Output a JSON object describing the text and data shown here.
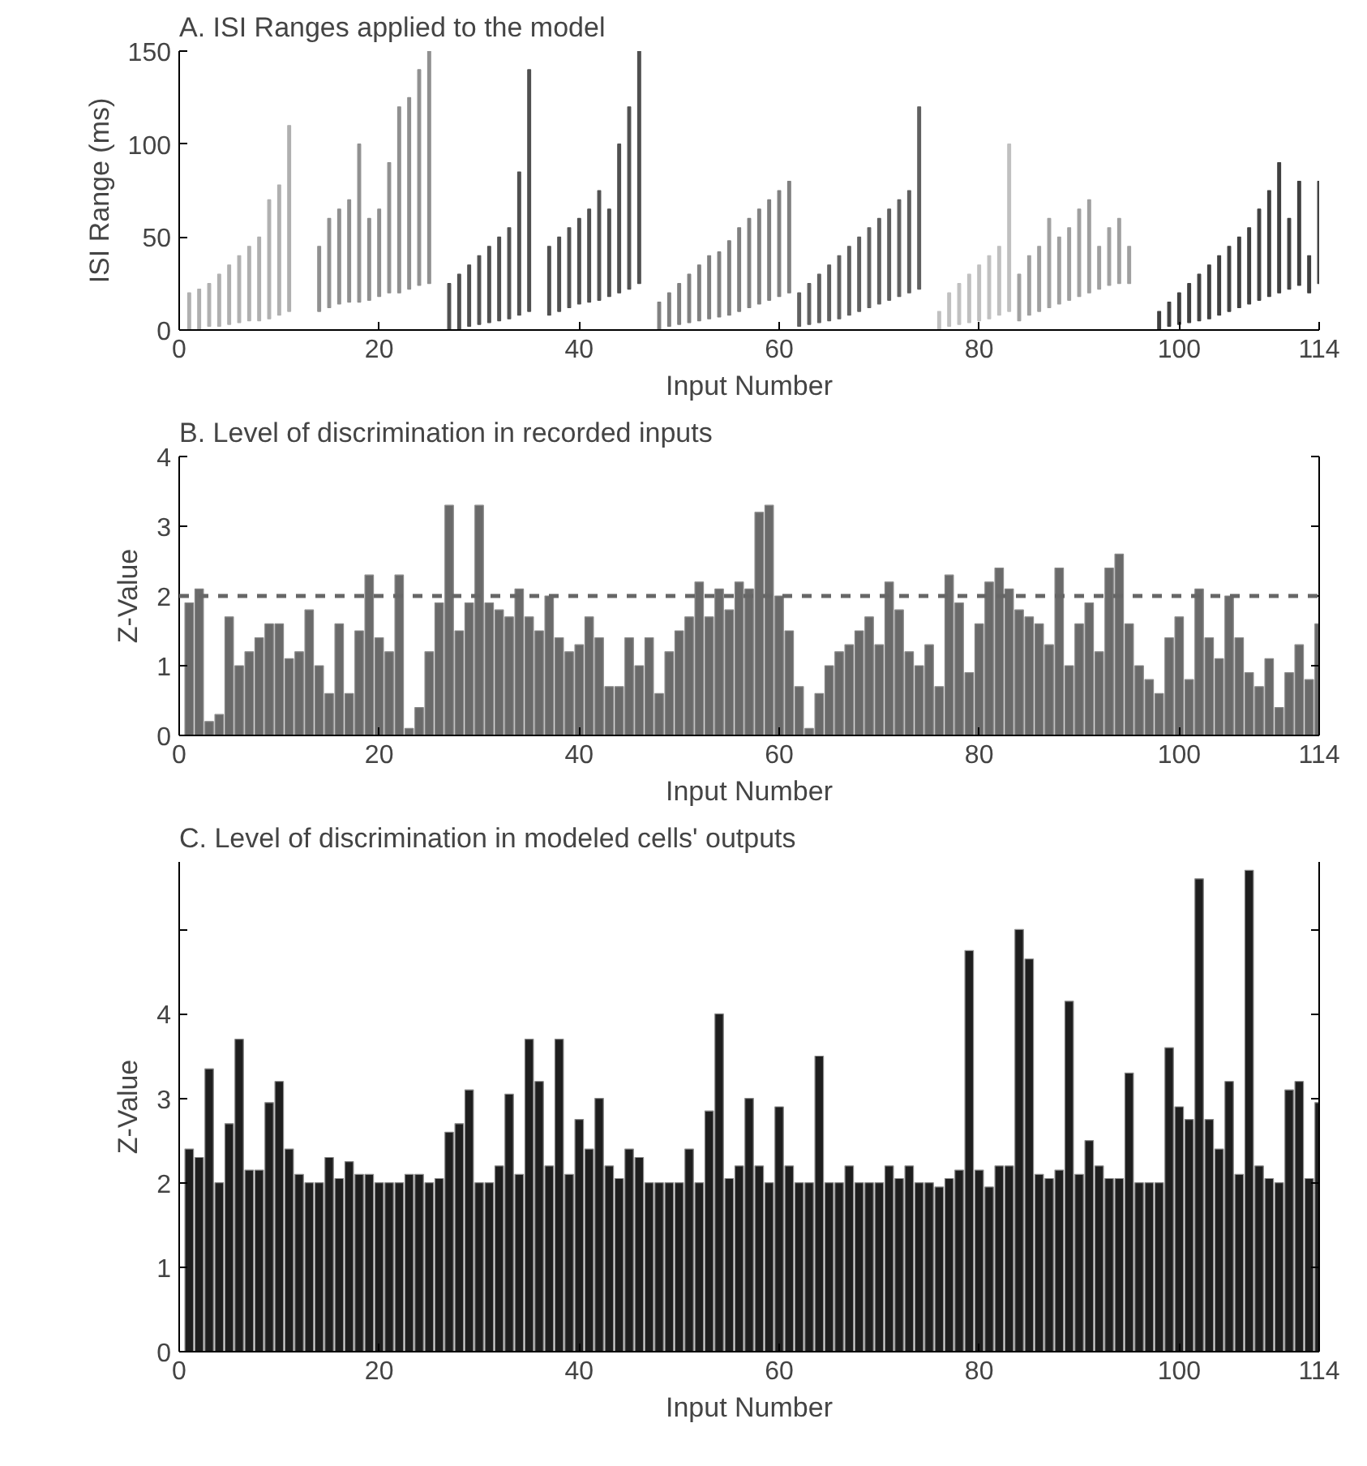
{
  "chart_data": [
    {
      "type": "bar",
      "title": "A. ISI Ranges applied to the model",
      "xlabel": "Input Number",
      "ylabel": "ISI Range (ms)",
      "xlim": [
        0,
        114
      ],
      "xticks": [
        0,
        20,
        40,
        60,
        80,
        100,
        114
      ],
      "ylim": [
        0,
        150
      ],
      "yticks": [
        0,
        50,
        100,
        150
      ],
      "grid": false,
      "series": [
        {
          "color": "#b0b0b0",
          "x": [
            1,
            2,
            3,
            4,
            5,
            6,
            7,
            8,
            9,
            10,
            11
          ],
          "base": [
            0,
            0,
            2,
            2,
            3,
            4,
            5,
            5,
            6,
            8,
            10
          ],
          "values": [
            20,
            22,
            23,
            28,
            32,
            36,
            40,
            45,
            64,
            70,
            100
          ]
        },
        {
          "color": "#909090",
          "x": [
            14,
            15,
            16,
            17,
            18,
            19,
            20,
            21,
            22,
            23,
            24,
            25
          ],
          "base": [
            10,
            12,
            14,
            15,
            15,
            16,
            18,
            20,
            20,
            22,
            24,
            25
          ],
          "values": [
            35,
            48,
            51,
            55,
            85,
            44,
            47,
            70,
            100,
            103,
            116,
            125
          ]
        },
        {
          "color": "#505050",
          "x": [
            27,
            28,
            29,
            30,
            31,
            32,
            33,
            34,
            35
          ],
          "base": [
            0,
            0,
            2,
            3,
            4,
            5,
            6,
            8,
            10
          ],
          "values": [
            25,
            30,
            33,
            37,
            41,
            45,
            49,
            77,
            130
          ]
        },
        {
          "color": "#505050",
          "x": [
            37,
            38,
            39,
            40,
            41,
            42,
            43,
            44,
            45,
            46
          ],
          "base": [
            8,
            10,
            12,
            14,
            15,
            16,
            18,
            20,
            22,
            25
          ],
          "values": [
            37,
            40,
            43,
            46,
            50,
            59,
            47,
            80,
            98,
            125
          ]
        },
        {
          "color": "#808080",
          "x": [
            48,
            49,
            50,
            51,
            52,
            53,
            54,
            55,
            56,
            57,
            58,
            59,
            60,
            61
          ],
          "base": [
            0,
            2,
            3,
            4,
            5,
            6,
            7,
            8,
            10,
            12,
            14,
            16,
            18,
            20
          ],
          "values": [
            15,
            18,
            22,
            26,
            30,
            34,
            35,
            40,
            45,
            48,
            51,
            54,
            57,
            60
          ]
        },
        {
          "color": "#606060",
          "x": [
            62,
            63,
            64,
            65,
            66,
            67,
            68,
            69,
            70,
            71,
            72,
            73,
            74
          ],
          "base": [
            2,
            3,
            4,
            5,
            6,
            8,
            10,
            12,
            14,
            16,
            18,
            20,
            22
          ],
          "values": [
            18,
            22,
            26,
            30,
            34,
            37,
            40,
            43,
            46,
            49,
            52,
            55,
            98
          ]
        },
        {
          "color": "#c0c0c0",
          "x": [
            76,
            77,
            78,
            79,
            80,
            81,
            82,
            83
          ],
          "base": [
            0,
            2,
            3,
            4,
            5,
            6,
            8,
            10
          ],
          "values": [
            10,
            18,
            22,
            26,
            30,
            34,
            37,
            90
          ]
        },
        {
          "color": "#a0a0a0",
          "x": [
            84,
            85,
            86,
            87,
            88,
            89,
            90,
            91,
            92,
            93,
            94,
            95
          ],
          "base": [
            5,
            8,
            10,
            12,
            14,
            16,
            18,
            20,
            22,
            24,
            25,
            25
          ],
          "values": [
            25,
            32,
            35,
            48,
            36,
            39,
            47,
            50,
            23,
            31,
            35,
            20
          ]
        },
        {
          "color": "#404040",
          "x": [
            98,
            99,
            100,
            101,
            102,
            103,
            104,
            105,
            106,
            107,
            108,
            109,
            110,
            111,
            112,
            113,
            114
          ],
          "base": [
            0,
            2,
            3,
            4,
            5,
            6,
            8,
            10,
            12,
            14,
            16,
            18,
            20,
            22,
            24,
            20,
            25
          ],
          "values": [
            10,
            13,
            17,
            21,
            25,
            29,
            32,
            35,
            38,
            41,
            49,
            57,
            70,
            38,
            56,
            20,
            55
          ]
        }
      ]
    },
    {
      "type": "bar",
      "title": "B. Level of discrimination in recorded inputs",
      "xlabel": "Input Number",
      "ylabel": "Z-Value",
      "xlim": [
        0,
        114
      ],
      "xticks": [
        0,
        20,
        40,
        60,
        80,
        100,
        114
      ],
      "ylim": [
        0,
        4
      ],
      "yticks": [
        0,
        1,
        2,
        3,
        4
      ],
      "grid": false,
      "ref_lines": [
        {
          "axis": "y",
          "value": 2,
          "color": "#666666",
          "line_style": "dashed"
        }
      ],
      "series": [
        {
          "color": "#6a6a6a",
          "x": [
            1,
            2,
            3,
            4,
            5,
            6,
            7,
            8,
            9,
            10,
            11,
            12,
            13,
            14,
            15,
            16,
            17,
            18,
            19,
            20,
            21,
            22,
            23,
            24,
            25,
            26,
            27,
            28,
            29,
            30,
            31,
            32,
            33,
            34,
            35,
            36,
            37,
            38,
            39,
            40,
            41,
            42,
            43,
            44,
            45,
            46,
            47,
            48,
            49,
            50,
            51,
            52,
            53,
            54,
            55,
            56,
            57,
            58,
            59,
            60,
            61,
            62,
            63,
            64,
            65,
            66,
            67,
            68,
            69,
            70,
            71,
            72,
            73,
            74,
            75,
            76,
            77,
            78,
            79,
            80,
            81,
            82,
            83,
            84,
            85,
            86,
            87,
            88,
            89,
            90,
            91,
            92,
            93,
            94,
            95,
            96,
            97,
            98,
            99,
            100,
            101,
            102,
            103,
            104,
            105,
            106,
            107,
            108,
            109,
            110,
            111,
            112,
            113,
            114
          ],
          "values": [
            1.9,
            2.1,
            0.2,
            0.3,
            1.7,
            1.0,
            1.2,
            1.4,
            1.6,
            1.6,
            1.1,
            1.2,
            1.8,
            1.0,
            0.6,
            1.6,
            0.6,
            1.5,
            2.3,
            1.4,
            1.2,
            2.3,
            0.1,
            0.4,
            1.2,
            1.9,
            3.3,
            1.5,
            1.9,
            3.3,
            1.9,
            1.8,
            1.7,
            2.1,
            1.7,
            1.5,
            2.0,
            1.4,
            1.2,
            1.3,
            1.7,
            1.4,
            0.7,
            0.7,
            1.4,
            1.0,
            1.4,
            0.6,
            1.2,
            1.5,
            1.7,
            2.2,
            1.7,
            2.1,
            1.8,
            2.2,
            2.1,
            3.2,
            3.3,
            2.0,
            1.5,
            0.7,
            0.1,
            0.6,
            1.0,
            1.2,
            1.3,
            1.5,
            1.7,
            1.3,
            2.2,
            1.8,
            1.2,
            1.0,
            1.3,
            0.7,
            2.3,
            1.9,
            0.9,
            1.6,
            2.2,
            2.4,
            2.1,
            1.8,
            1.7,
            1.6,
            1.3,
            2.4,
            1.0,
            1.6,
            1.9,
            1.2,
            2.4,
            2.6,
            1.6,
            1.0,
            0.8,
            0.6,
            1.4,
            1.7,
            0.8,
            2.1,
            1.4,
            1.1,
            2.0,
            1.4,
            0.9,
            0.7,
            1.1,
            0.4,
            0.9,
            1.3,
            0.8,
            1.6
          ]
        }
      ]
    },
    {
      "type": "bar",
      "title": "C. Level of discrimination in modeled cells' outputs",
      "xlabel": "Input Number",
      "ylabel": "Z-Value",
      "xlim": [
        0,
        114
      ],
      "xticks": [
        0,
        20,
        40,
        60,
        80,
        100,
        114
      ],
      "ylim": [
        0,
        5.8
      ],
      "yticks": [
        0,
        1,
        2,
        3,
        4,
        {
          "value": 5,
          "label": null
        }
      ],
      "grid": false,
      "series": [
        {
          "color": "#1e1e1e",
          "x": [
            1,
            2,
            3,
            4,
            5,
            6,
            7,
            8,
            9,
            10,
            11,
            12,
            13,
            14,
            15,
            16,
            17,
            18,
            19,
            20,
            21,
            22,
            23,
            24,
            25,
            26,
            27,
            28,
            29,
            30,
            31,
            32,
            33,
            34,
            35,
            36,
            37,
            38,
            39,
            40,
            41,
            42,
            43,
            44,
            45,
            46,
            47,
            48,
            49,
            50,
            51,
            52,
            53,
            54,
            55,
            56,
            57,
            58,
            59,
            60,
            61,
            62,
            63,
            64,
            65,
            66,
            67,
            68,
            69,
            70,
            71,
            72,
            73,
            74,
            75,
            76,
            77,
            78,
            79,
            80,
            81,
            82,
            83,
            84,
            85,
            86,
            87,
            88,
            89,
            90,
            91,
            92,
            93,
            94,
            95,
            96,
            97,
            98,
            99,
            100,
            101,
            102,
            103,
            104,
            105,
            106,
            107,
            108,
            109,
            110,
            111,
            112,
            113,
            114
          ],
          "values": [
            2.4,
            2.3,
            3.35,
            2.0,
            2.7,
            3.7,
            2.15,
            2.15,
            2.95,
            3.2,
            2.4,
            2.1,
            2.0,
            2.0,
            2.3,
            2.05,
            2.25,
            2.1,
            2.1,
            2.0,
            2.0,
            2.0,
            2.1,
            2.1,
            2.0,
            2.05,
            2.6,
            2.7,
            3.1,
            2.0,
            2.0,
            2.2,
            3.05,
            2.1,
            3.7,
            3.2,
            2.2,
            3.7,
            2.1,
            2.75,
            2.4,
            3.0,
            2.2,
            2.05,
            2.4,
            2.3,
            2.0,
            2.0,
            2.0,
            2.0,
            2.4,
            2.0,
            2.85,
            4.0,
            2.05,
            2.2,
            3.0,
            2.2,
            2.0,
            2.9,
            2.2,
            2.0,
            2.0,
            3.5,
            2.0,
            2.0,
            2.2,
            2.0,
            2.0,
            2.0,
            2.2,
            2.05,
            2.2,
            2.0,
            2.0,
            1.95,
            2.05,
            2.15,
            4.75,
            2.15,
            1.95,
            2.2,
            2.2,
            5.0,
            4.65,
            2.1,
            2.05,
            2.15,
            4.15,
            2.1,
            2.5,
            2.2,
            2.05,
            2.05,
            3.3,
            2.0,
            2.0,
            2.0,
            3.6,
            2.9,
            2.75,
            5.6,
            2.75,
            2.4,
            3.2,
            2.1,
            5.7,
            2.2,
            2.05,
            2.0,
            3.1,
            3.2,
            2.05,
            2.95
          ]
        }
      ]
    }
  ]
}
